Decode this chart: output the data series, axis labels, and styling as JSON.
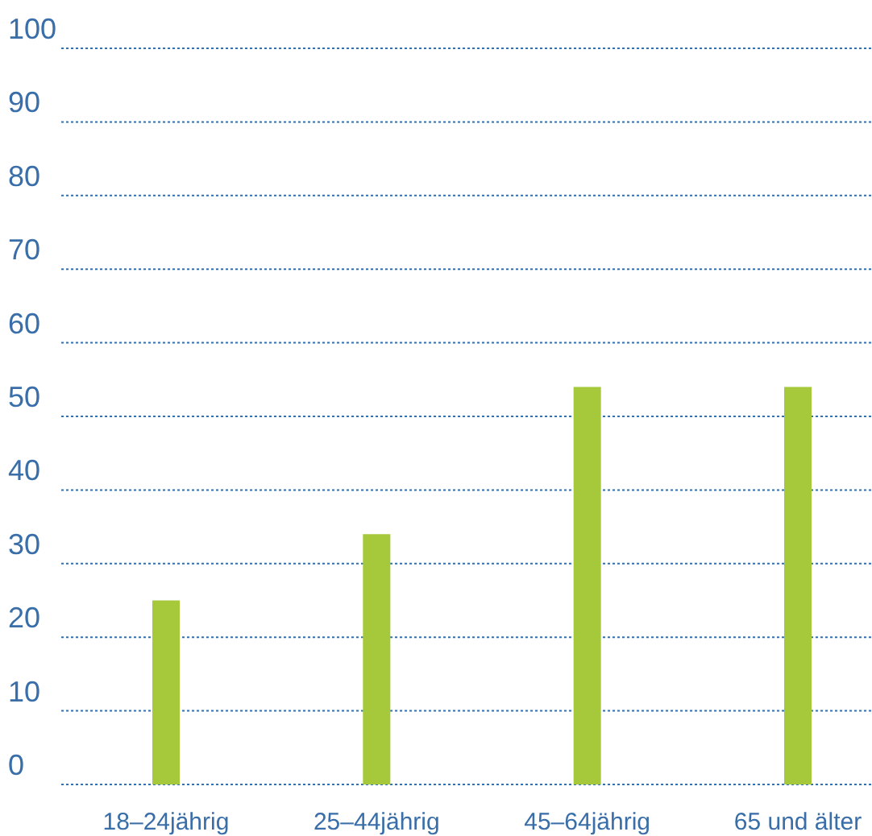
{
  "chart_data": {
    "type": "bar",
    "categories": [
      "18–24jährig",
      "25–44jährig",
      "45–64jährig",
      "65 und älter"
    ],
    "values": [
      25,
      34,
      54,
      54
    ],
    "color": "#a5c93a",
    "ylim": [
      0,
      100
    ],
    "yticks": [
      0,
      10,
      20,
      30,
      40,
      50,
      60,
      70,
      80,
      90,
      100
    ],
    "grid": "y"
  }
}
